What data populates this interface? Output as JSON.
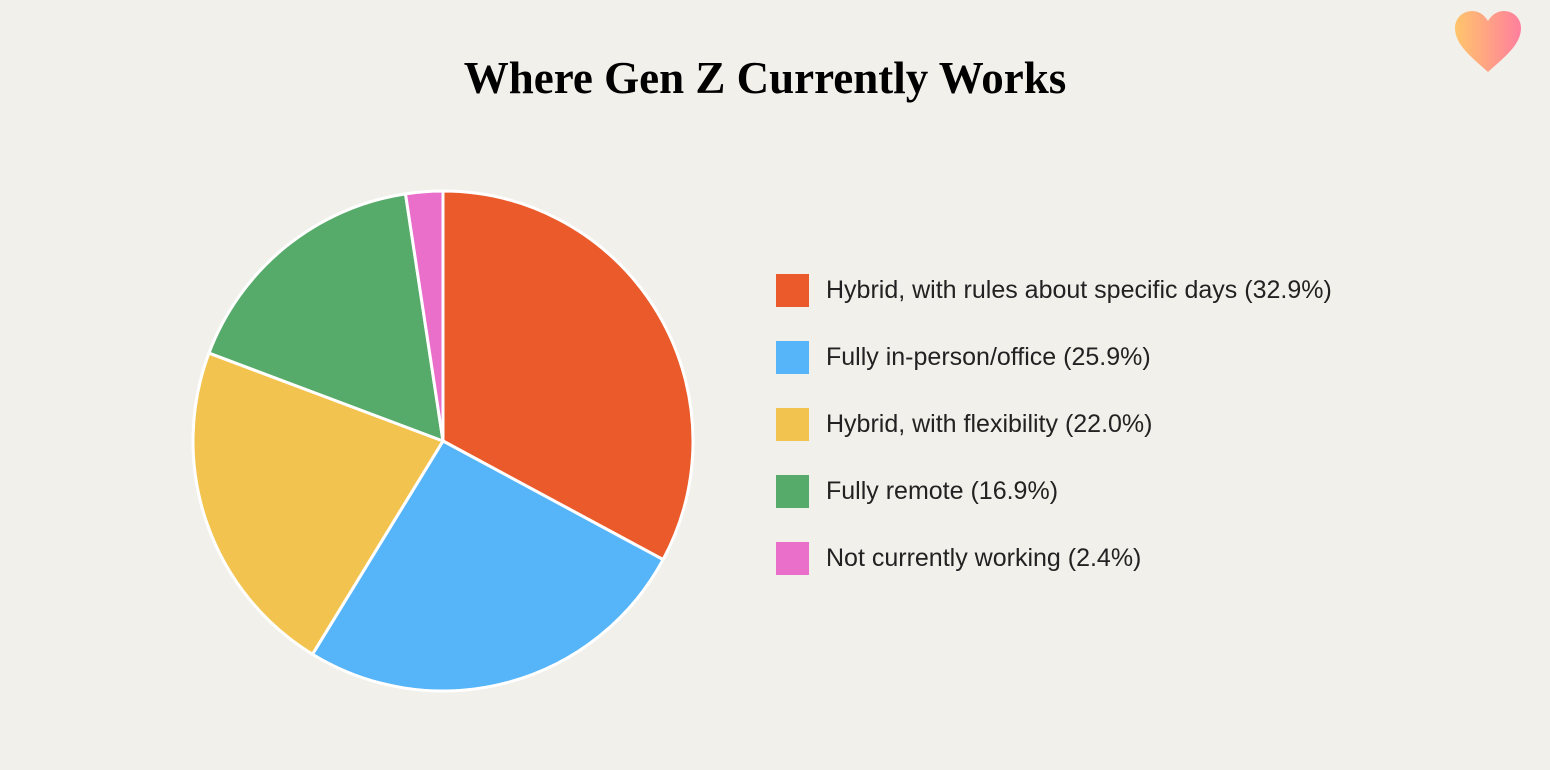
{
  "chart_data": {
    "type": "pie",
    "title": "Where Gen Z Currently Works",
    "slices": [
      {
        "label": "Hybrid, with rules about specific days (32.9%)",
        "value": 32.9,
        "color": "#eb5a2a"
      },
      {
        "label": "Fully in-person/office (25.9%)",
        "value": 25.9,
        "color": "#56b4f8"
      },
      {
        "label": "Hybrid, with flexibility (22.0%)",
        "value": 22.0,
        "color": "#f2c44f"
      },
      {
        "label": "Fully remote (16.9%)",
        "value": 16.9,
        "color": "#57ab6a"
      },
      {
        "label": "Not currently working (2.4%)",
        "value": 2.4,
        "color": "#ea6fcb"
      }
    ],
    "legend_position": "right"
  },
  "logo": {
    "icon": "heart-icon",
    "colors": [
      "#ffc56b",
      "#ff7f9e"
    ]
  }
}
